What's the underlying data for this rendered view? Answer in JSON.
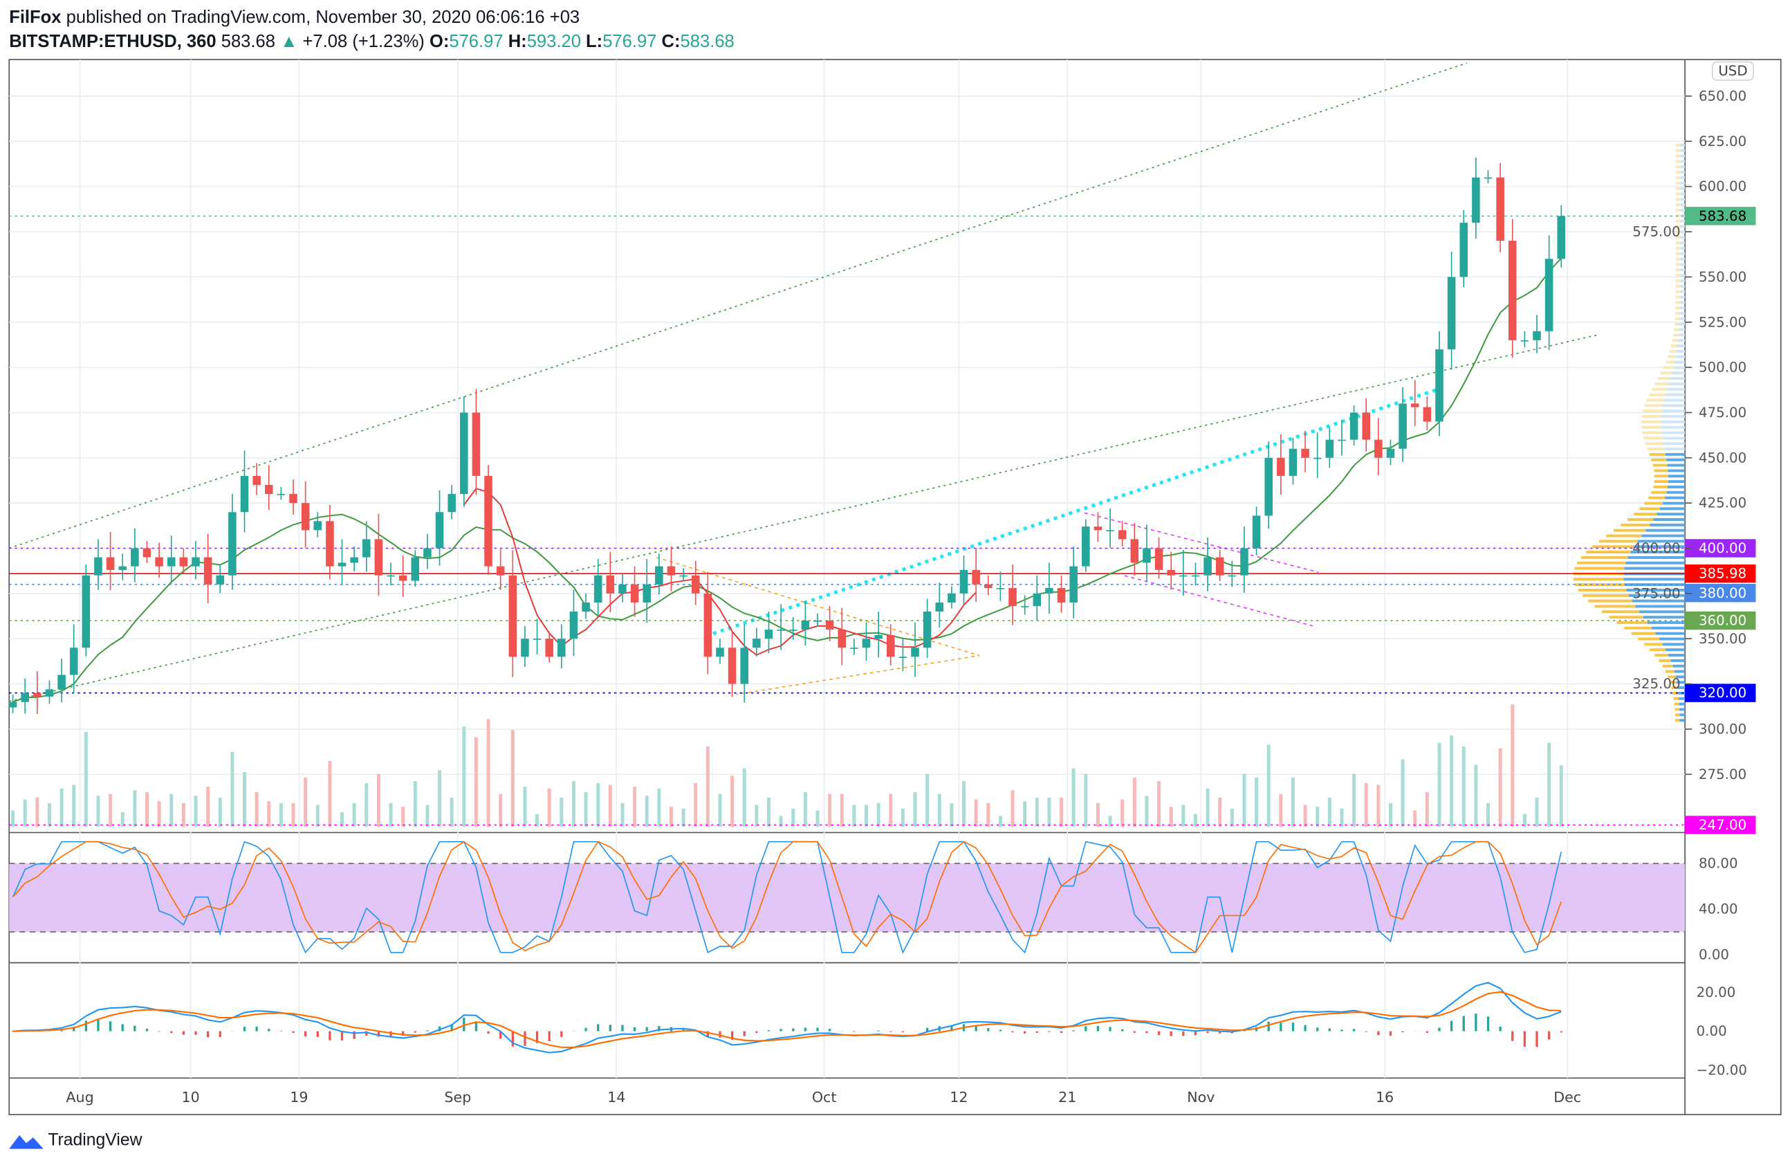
{
  "header": {
    "author": "FilFox",
    "published": "published on TradingView.com, November 30, 2020 06:06:16 +03",
    "symbol": "BITSTAMP:ETHUSD, 360",
    "last": "583.68",
    "change": "+7.08 (+1.23%)",
    "o_label": "O:",
    "o": "576.97",
    "h_label": "H:",
    "h": "593.20",
    "l_label": "L:",
    "l": "576.97",
    "c_label": "C:",
    "c": "583.68"
  },
  "currency_button": "USD",
  "price_axis": [
    "650.00",
    "625.00",
    "600.00",
    "575.00",
    "550.00",
    "525.00",
    "500.00",
    "475.00",
    "450.00",
    "425.00",
    "400.00",
    "375.00",
    "350.00",
    "325.00",
    "300.00",
    "275.00"
  ],
  "price_labels": [
    {
      "text": "583.68",
      "value": 583.68,
      "color": "#53b987",
      "text_color": "#000000"
    },
    {
      "text": "400.00",
      "value": 400,
      "color": "#9c27f5",
      "text_color": "#ffffff"
    },
    {
      "text": "385.98",
      "value": 385.98,
      "color": "#ff0000",
      "text_color": "#ffffff"
    },
    {
      "text": "380.00",
      "value": 380,
      "color": "#4a88e8",
      "text_color": "#ffffff"
    },
    {
      "text": "360.00",
      "value": 360,
      "color": "#6aa84f",
      "text_color": "#ffffff"
    },
    {
      "text": "320.00",
      "value": 320,
      "color": "#0000ff",
      "text_color": "#ffffff"
    },
    {
      "text": "247.00",
      "value": 247,
      "color": "#ff00ff",
      "text_color": "#ffffff"
    }
  ],
  "rsi_axis": [
    "80.00",
    "40.00",
    "0.00"
  ],
  "macd_axis": [
    "20.00",
    "0.00",
    "−20.00"
  ],
  "time_axis": [
    "Aug",
    "10",
    "19",
    "Sep",
    "14",
    "Oct",
    "12",
    "21",
    "Nov",
    "16",
    "Dec"
  ],
  "colors": {
    "up": "#26a69a",
    "down": "#ef5350",
    "ma_long": "#3c9a3c",
    "ma_short": "#e53935",
    "rsi_band": "#e1c6f7"
  },
  "chart_data": {
    "type": "candlestick",
    "start_date": "2020-07-26",
    "interval": "daily approximation of 360-minute candles",
    "closes": [
      315,
      320,
      318,
      322,
      330,
      345,
      385,
      395,
      388,
      390,
      400,
      395,
      390,
      395,
      390,
      395,
      380,
      385,
      420,
      440,
      435,
      430,
      430,
      425,
      410,
      415,
      390,
      392,
      395,
      405,
      385,
      385,
      382,
      395,
      400,
      420,
      430,
      475,
      440,
      390,
      385,
      340,
      350,
      350,
      340,
      350,
      365,
      370,
      385,
      375,
      380,
      370,
      380,
      390,
      385,
      385,
      375,
      340,
      345,
      325,
      345,
      350,
      355,
      355,
      355,
      360,
      360,
      355,
      345,
      345,
      350,
      352,
      340,
      340,
      345,
      365,
      370,
      375,
      388,
      380,
      378,
      378,
      368,
      368,
      375,
      378,
      370,
      390,
      412,
      410,
      410,
      405,
      392,
      400,
      388,
      385,
      385,
      385,
      395,
      385,
      385,
      400,
      418,
      450,
      440,
      455,
      450,
      450,
      460,
      460,
      475,
      460,
      450,
      455,
      480,
      478,
      470,
      510,
      550,
      580,
      605,
      605,
      570,
      515,
      515,
      520,
      560,
      583.68
    ]
  },
  "footer": {
    "brand": "TradingView"
  }
}
